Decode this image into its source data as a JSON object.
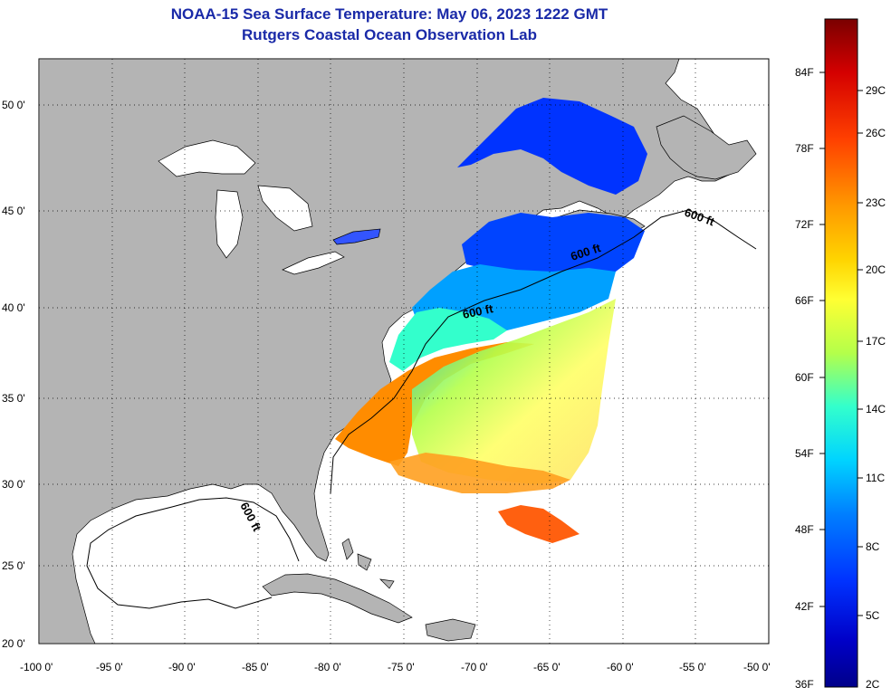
{
  "title": "NOAA-15 Sea Surface Temperature:  May 06, 2023 1222 GMT",
  "subtitle": "Rutgers Coastal Ocean Observation Lab",
  "map": {
    "lon_range": [
      -100,
      -50
    ],
    "lat_range": [
      20,
      52
    ],
    "lon_ticks": [
      "-100 0'",
      "-95 0'",
      "-90 0'",
      "-85 0'",
      "-80 0'",
      "-75 0'",
      "-70 0'",
      "-65 0'",
      "-60 0'",
      "-55 0'",
      "-50 0'"
    ],
    "lat_ticks": [
      "50 0'",
      "45 0'",
      "40 0'",
      "35 0'",
      "30 0'",
      "25 0'",
      "20 0'"
    ],
    "land_color": "#b4b4b4",
    "water_color": "#ffffff",
    "grid": "dotted",
    "isobath_labels": [
      "600 ft",
      "600 ft",
      "600 ft",
      "600 ft"
    ]
  },
  "colorbar": {
    "fahrenheit_labels": [
      "84F",
      "78F",
      "72F",
      "66F",
      "60F",
      "54F",
      "48F",
      "42F",
      "36F"
    ],
    "celsius_labels": [
      "29C",
      "26C",
      "23C",
      "20C",
      "17C",
      "14C",
      "11C",
      "8C",
      "5C",
      "2C"
    ],
    "colors_top_to_bottom": [
      "#7a0000",
      "#d40000",
      "#ff4000",
      "#ff9900",
      "#ffd400",
      "#ffff33",
      "#b4ff4a",
      "#33ffcc",
      "#00d4ff",
      "#0080ff",
      "#0033ff",
      "#0000c8",
      "#00008a"
    ]
  }
}
